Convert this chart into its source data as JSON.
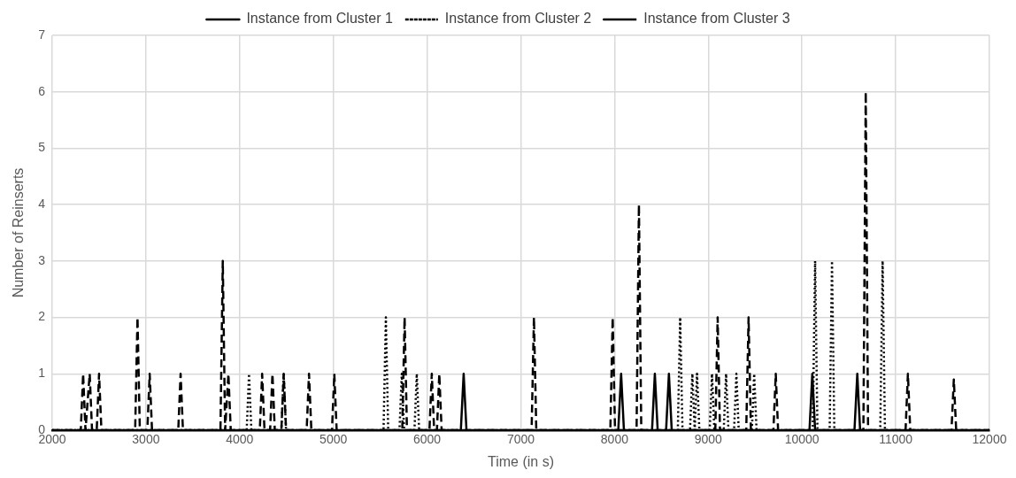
{
  "chart_data": {
    "type": "line",
    "xlabel": "Time (in s)",
    "ylabel": "Number of Reinserts",
    "xlim": [
      2000,
      12000
    ],
    "xticks": [
      2000,
      3000,
      4000,
      5000,
      6000,
      7000,
      8000,
      9000,
      10000,
      11000,
      12000
    ],
    "ylim": [
      0,
      7
    ],
    "yticks": [
      0,
      1,
      2,
      3,
      4,
      5,
      6,
      7
    ],
    "grid": true,
    "legend": "top",
    "marker": "none",
    "series": [
      {
        "name": "Instance from Cluster 1",
        "color": "#000000",
        "line_style": "solid",
        "x": [
          2000,
          6360,
          6390,
          6420,
          8040,
          8070,
          8100,
          8400,
          8430,
          8460,
          8550,
          8580,
          8610,
          10080,
          10110,
          10140,
          10560,
          10590,
          10620,
          12000
        ],
        "values": [
          0,
          0,
          1,
          0,
          0,
          1,
          0,
          0,
          1,
          0,
          0,
          1,
          0,
          0,
          1,
          0,
          0,
          1,
          0,
          0
        ]
      },
      {
        "name": "Instance from Cluster 2",
        "color": "#000000",
        "line_style": "dotted",
        "x": [
          2000,
          4075,
          4100,
          4125,
          4445,
          4470,
          4495,
          5535,
          5560,
          5585,
          5705,
          5730,
          5755,
          5865,
          5890,
          5915,
          8675,
          8700,
          8725,
          8805,
          8830,
          8855,
          8880,
          8905,
          9015,
          9040,
          9065,
          9165,
          9190,
          9215,
          9275,
          9300,
          9325,
          9465,
          9490,
          9515,
          10115,
          10140,
          10165,
          10295,
          10320,
          10345,
          10835,
          10860,
          10885,
          12000
        ],
        "values": [
          0,
          0,
          1,
          0,
          0,
          1,
          0,
          0,
          2,
          0,
          0,
          1,
          0,
          0,
          1,
          0,
          0,
          2,
          0,
          0,
          1,
          0,
          1,
          0,
          0,
          1,
          0,
          0,
          1,
          0,
          0,
          1,
          0,
          0,
          1,
          0,
          0,
          3,
          0,
          0,
          3,
          0,
          0,
          3,
          0,
          0
        ]
      },
      {
        "name": "Instance from Cluster 3",
        "color": "#000000",
        "line_style": "dashed",
        "x": [
          2000,
          2305,
          2330,
          2355,
          2400,
          2425,
          2475,
          2500,
          2525,
          2885,
          2910,
          2935,
          3015,
          3040,
          3065,
          3345,
          3370,
          3395,
          3795,
          3820,
          3845,
          3880,
          3905,
          4215,
          4240,
          4265,
          4325,
          4350,
          4375,
          4445,
          4470,
          4495,
          4715,
          4740,
          4765,
          4985,
          5010,
          5035,
          5735,
          5760,
          5785,
          6025,
          6050,
          6075,
          6105,
          6130,
          6155,
          7115,
          7140,
          7165,
          7955,
          7980,
          8005,
          8235,
          8260,
          8285,
          9075,
          9100,
          9125,
          9405,
          9430,
          9455,
          9695,
          9720,
          9745,
          10655,
          10680,
          10705,
          11105,
          11130,
          11155,
          11595,
          11620,
          11645,
          12000
        ],
        "values": [
          0,
          0,
          1,
          0,
          1,
          0,
          0,
          1,
          0,
          0,
          2,
          0,
          0,
          1,
          0,
          0,
          1,
          0,
          0,
          3,
          0,
          1,
          0,
          0,
          1,
          0,
          0,
          1,
          0,
          0,
          1,
          0,
          0,
          1,
          0,
          0,
          1,
          0,
          0,
          2,
          0,
          0,
          1,
          0,
          0,
          1,
          0,
          0,
          2,
          0,
          0,
          2,
          0,
          0,
          4,
          0,
          0,
          2,
          0,
          0,
          2,
          0,
          0,
          1,
          0,
          0,
          6,
          0,
          0,
          1,
          0,
          0,
          0.9,
          0,
          0
        ]
      }
    ]
  }
}
